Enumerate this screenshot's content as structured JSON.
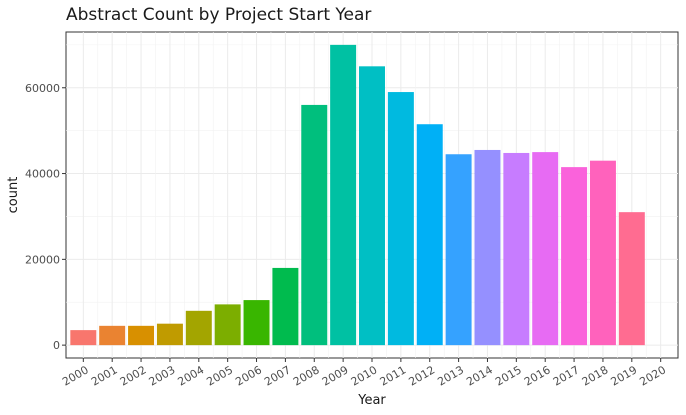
{
  "chart_data": {
    "type": "bar",
    "title": "Abstract Count by Project Start Year",
    "xlabel": "Year",
    "ylabel": "count",
    "categories": [
      "2000",
      "2001",
      "2002",
      "2003",
      "2004",
      "2005",
      "2006",
      "2007",
      "2008",
      "2009",
      "2010",
      "2011",
      "2012",
      "2013",
      "2014",
      "2015",
      "2016",
      "2017",
      "2018",
      "2019",
      "2020"
    ],
    "values": [
      3500,
      4500,
      4500,
      5000,
      8000,
      9500,
      10500,
      18000,
      56000,
      70000,
      65000,
      59000,
      51500,
      44500,
      45500,
      44800,
      45000,
      41500,
      43000,
      31000,
      0
    ],
    "yticks": [
      0,
      20000,
      40000,
      60000
    ],
    "ytick_labels": [
      "0",
      "20000",
      "40000",
      "60000"
    ],
    "ylim": [
      -3000,
      73000
    ],
    "grid": true,
    "legend": "none",
    "colors": [
      "#F8766D",
      "#EA8331",
      "#D89000",
      "#C09B00",
      "#A3A500",
      "#7CAE00",
      "#39B600",
      "#00BB4E",
      "#00BF7D",
      "#00C1A3",
      "#00BFC4",
      "#00BAE0",
      "#00B0F6",
      "#35A2FF",
      "#9590FF",
      "#C77CFF",
      "#E76BF3",
      "#FA62DB",
      "#FF62BC",
      "#FF6C91",
      "#FF6C91"
    ]
  }
}
